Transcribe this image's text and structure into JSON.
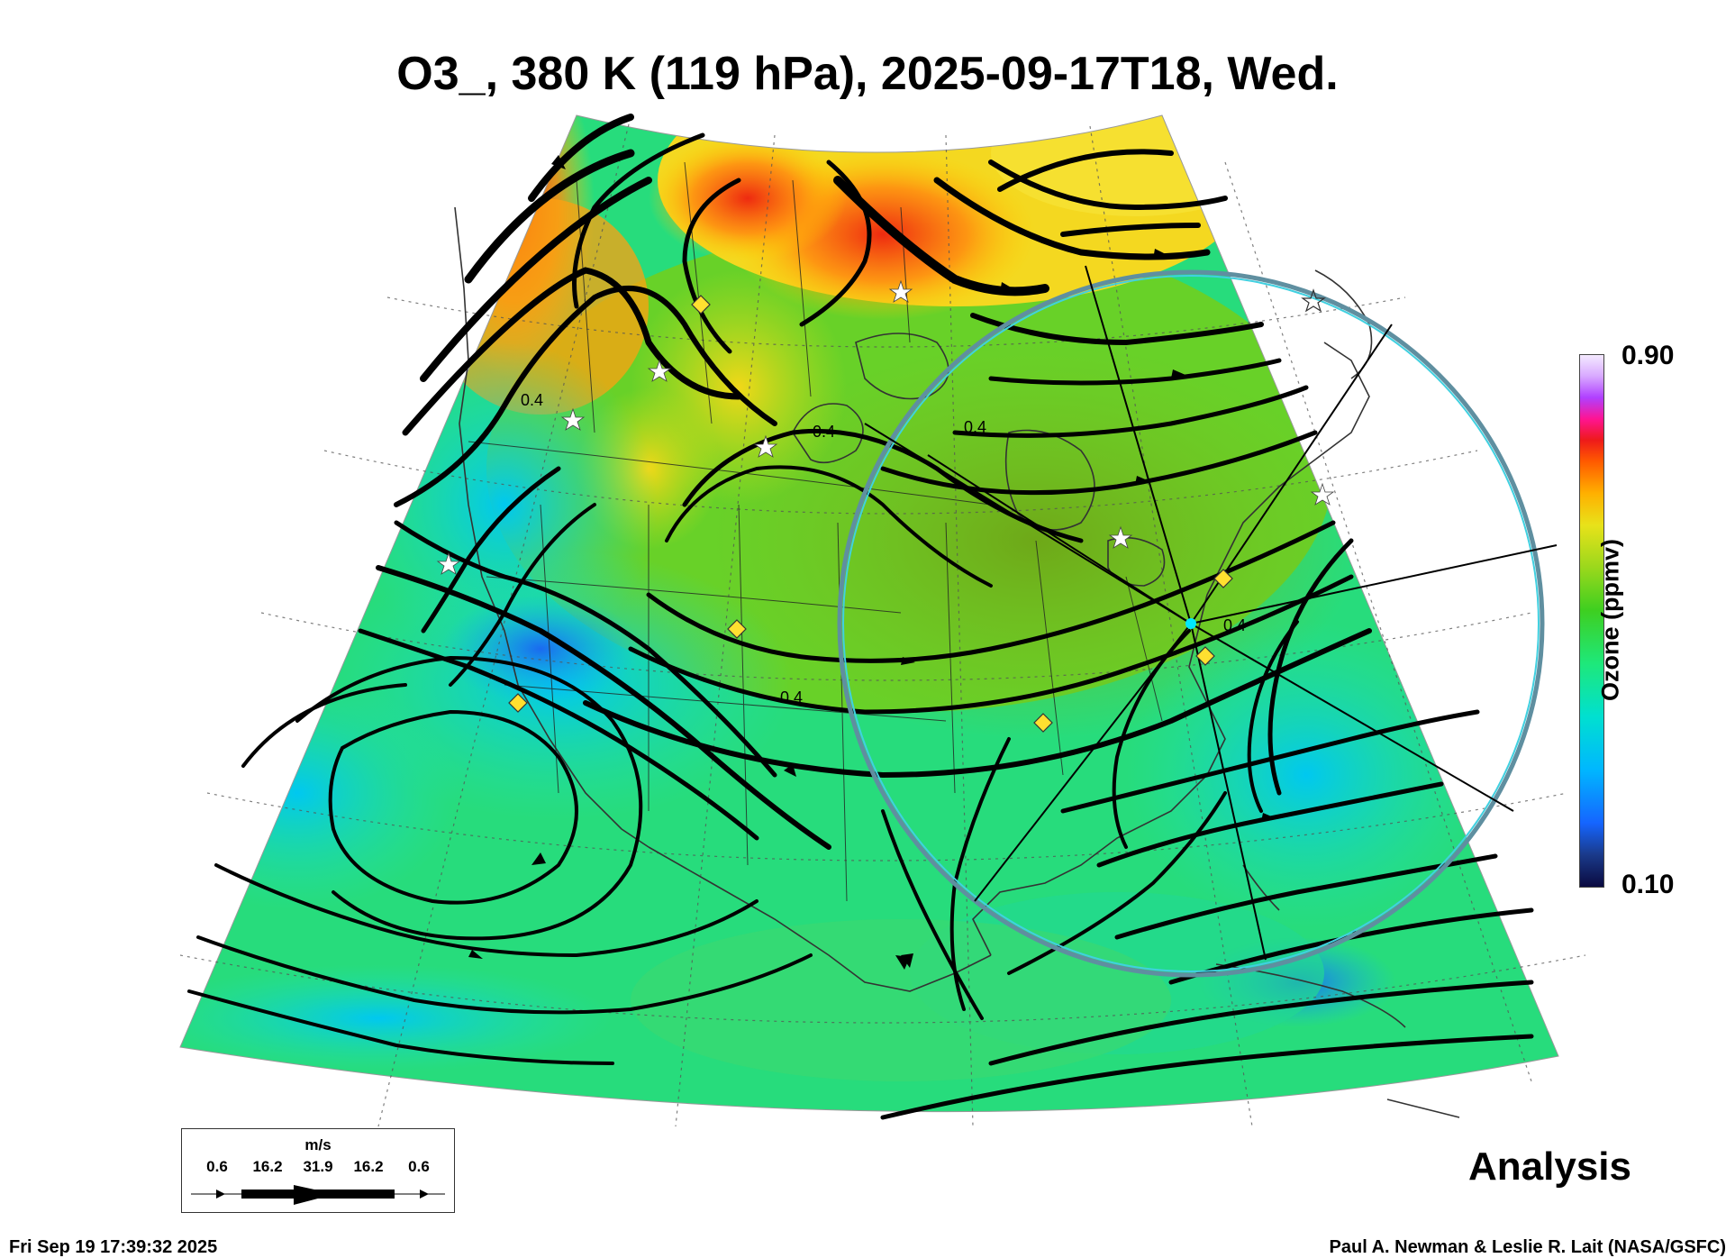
{
  "title": "O3_, 380 K (119 hPa), 2025-09-17T18, Wed.",
  "colorbar": {
    "max_label": "0.90",
    "min_label": "0.10",
    "label": "Ozone (ppmv)",
    "colors": [
      "#0a0a40",
      "#1565ff",
      "#00e0d0",
      "#3ecf20",
      "#e8e21a",
      "#ff5a00",
      "#ee1a1a",
      "#ff1493",
      "#f4eaff"
    ]
  },
  "analysis_label": "Analysis",
  "footer": {
    "timestamp": "Fri Sep 19 17:39:32 2025",
    "credit": "Paul A. Newman & Leslie R. Lait (NASA/GSFC)"
  },
  "wind_legend": {
    "units": "m/s",
    "values": [
      "0.6",
      "16.2",
      "31.9",
      "16.2",
      "0.6"
    ]
  },
  "contour_labels": [
    "0.4",
    "0.4",
    "0.4",
    "0.4",
    "0.4"
  ],
  "icons": {
    "star": "star-marker-icon",
    "diamond": "diamond-marker-icon",
    "circle": "range-circle"
  }
}
